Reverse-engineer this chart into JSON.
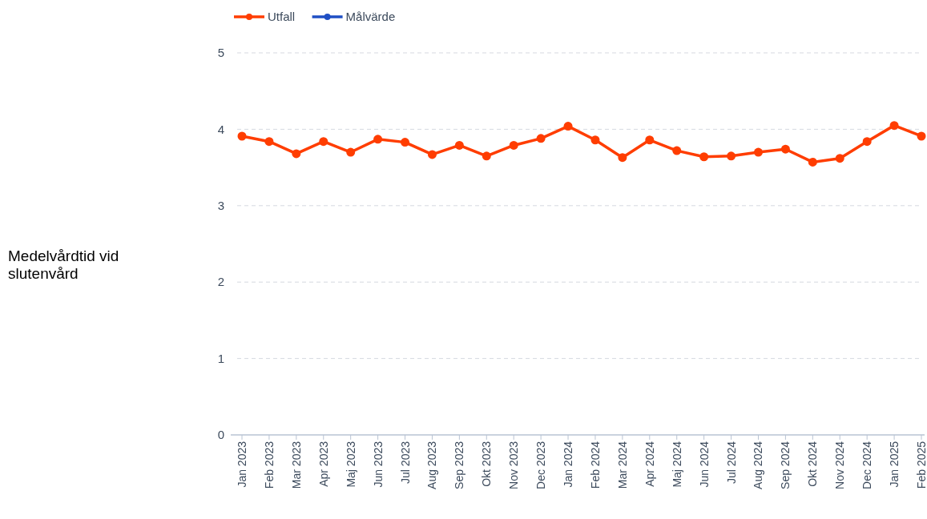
{
  "chart_data": {
    "type": "line",
    "annotations": [
      "Medelvårdtid vid slutenvård"
    ],
    "categories": [
      "Jan 2023",
      "Feb 2023",
      "Mar 2023",
      "Apr 2023",
      "Maj 2023",
      "Jun 2023",
      "Jul 2023",
      "Aug 2023",
      "Sep 2023",
      "Okt 2023",
      "Nov 2023",
      "Dec 2023",
      "Jan 2024",
      "Feb 2024",
      "Mar 2024",
      "Apr 2024",
      "Maj 2024",
      "Jun 2024",
      "Jul 2024",
      "Aug 2024",
      "Sep 2024",
      "Okt 2024",
      "Nov 2024",
      "Dec 2024",
      "Jan 2025",
      "Feb 2025"
    ],
    "series": [
      {
        "name": "Utfall",
        "color": "#ff3d00",
        "values": [
          3.91,
          3.84,
          3.68,
          3.84,
          3.7,
          3.87,
          3.83,
          3.67,
          3.79,
          3.65,
          3.79,
          3.88,
          4.04,
          3.86,
          3.63,
          3.86,
          3.72,
          3.64,
          3.65,
          3.7,
          3.74,
          3.57,
          3.62,
          3.84,
          4.05,
          3.91
        ]
      },
      {
        "name": "Målvärde",
        "color": "#1f4fc4",
        "values": [
          null,
          null,
          null,
          null,
          null,
          null,
          null,
          null,
          null,
          null,
          null,
          null,
          null,
          null,
          null,
          null,
          null,
          null,
          null,
          null,
          null,
          null,
          null,
          null,
          null,
          null
        ]
      }
    ],
    "ylim": [
      0,
      5
    ],
    "yticks": [
      0,
      1,
      2,
      3,
      4,
      5
    ],
    "grid": "y",
    "legend": "top left",
    "marker": "circle",
    "line_style": "solid"
  }
}
